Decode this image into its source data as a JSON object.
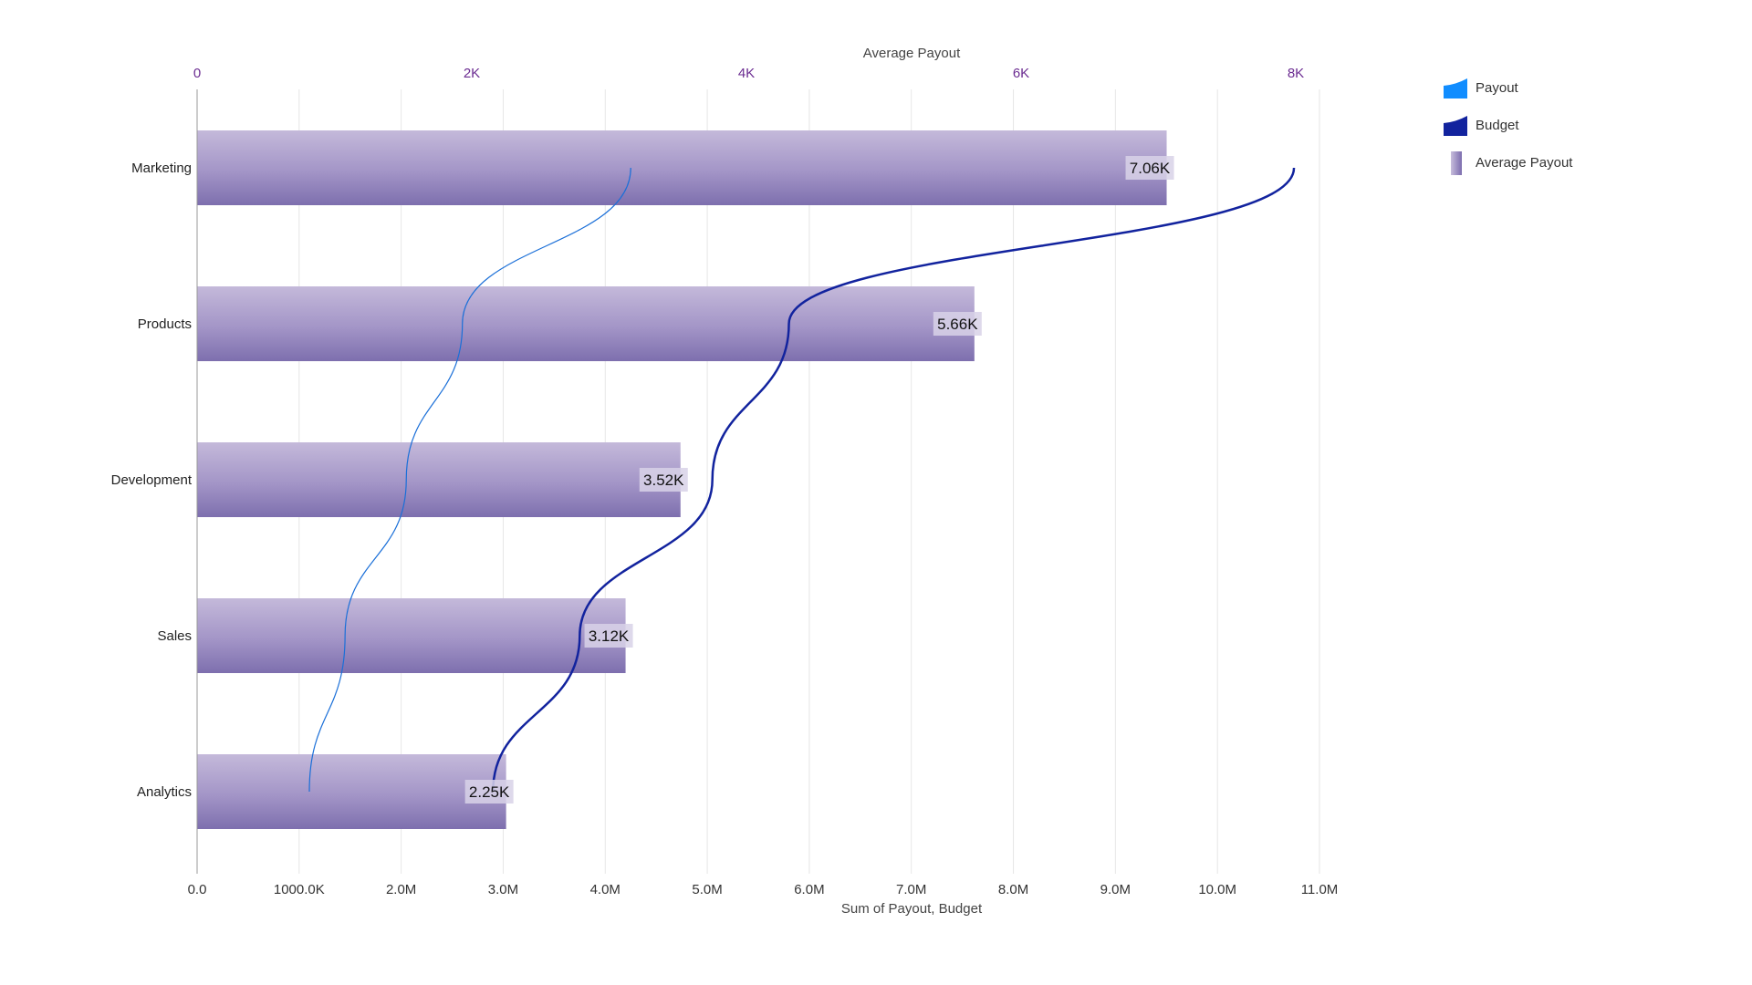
{
  "chart_data": {
    "type": "bar",
    "categories": [
      "Marketing",
      "Products",
      "Development",
      "Sales",
      "Analytics"
    ],
    "series": [
      {
        "name": "Payout",
        "type": "area",
        "axis": "bottom",
        "values": [
          4250000,
          2600000,
          2050000,
          1450000,
          1100000
        ],
        "color": "#118DFF"
      },
      {
        "name": "Budget",
        "type": "area",
        "axis": "bottom",
        "values": [
          10750000,
          5800000,
          5050000,
          3750000,
          2900000
        ],
        "color": "#12239E"
      },
      {
        "name": "Average Payout",
        "type": "bar",
        "axis": "top",
        "values": [
          7060,
          5660,
          3520,
          3120,
          2250
        ],
        "labels": [
          "7.06K",
          "5.66K",
          "3.52K",
          "3.12K",
          "2.25K"
        ],
        "color": "#8B7DB8"
      }
    ],
    "bottom_axis": {
      "title": "Sum of Payout, Budget",
      "range": [
        0,
        11000000
      ],
      "ticks": [
        0,
        1000000,
        2000000,
        3000000,
        4000000,
        5000000,
        6000000,
        7000000,
        8000000,
        9000000,
        10000000,
        11000000
      ],
      "tick_labels": [
        "0.0",
        "1000.0K",
        "2.0M",
        "3.0M",
        "4.0M",
        "5.0M",
        "6.0M",
        "7.0M",
        "8.0M",
        "9.0M",
        "10.0M",
        "11.0M"
      ]
    },
    "top_axis": {
      "title": "Average Payout",
      "range": [
        0,
        8000
      ],
      "ticks": [
        0,
        2000,
        4000,
        6000,
        8000
      ],
      "tick_labels": [
        "0",
        "2K",
        "4K",
        "6K",
        "8K"
      ],
      "color": "#6B2C91"
    },
    "legend": {
      "position": "top-right",
      "items": [
        {
          "label": "Payout",
          "color": "#118DFF"
        },
        {
          "label": "Budget",
          "color": "#12239E"
        },
        {
          "label": "Average Payout",
          "color": "#8B7DB8"
        }
      ]
    },
    "grid": true
  }
}
